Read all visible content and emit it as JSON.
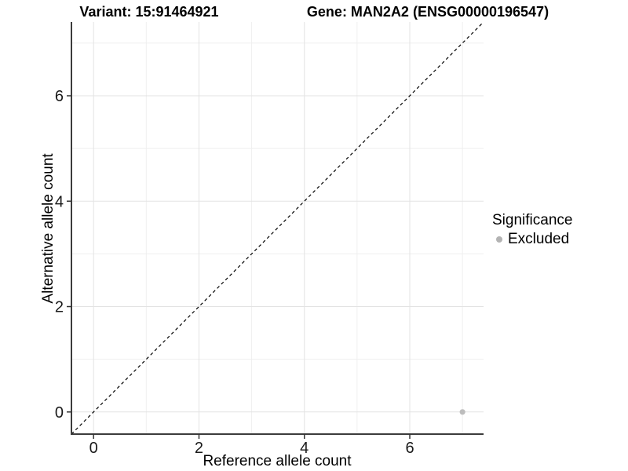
{
  "chart_data": {
    "type": "scatter",
    "title_left": "Variant: 15:91464921",
    "title_right": "Gene: MAN2A2 (ENSG00000196547)",
    "xlabel": "Reference allele count",
    "ylabel": "Alternative allele count",
    "xlim": [
      -0.42,
      7.4
    ],
    "ylim": [
      -0.42,
      7.4
    ],
    "xticks": [
      0,
      2,
      4,
      6
    ],
    "yticks": [
      0,
      2,
      4,
      6
    ],
    "x_minor_gridlines": [
      1,
      3,
      5,
      7
    ],
    "y_minor_gridlines": [
      1,
      3,
      5,
      7
    ],
    "grid": "major-and-minor",
    "legend_position": "right",
    "points": [
      {
        "x": 7,
        "y": 0,
        "significance": "Excluded"
      }
    ],
    "reference_line": {
      "kind": "identity",
      "slope": 1,
      "intercept": 0,
      "style": "dashed"
    },
    "legend": {
      "title": "Significance",
      "entries": [
        {
          "label": "Excluded",
          "color": "#b3b3b3"
        }
      ]
    }
  },
  "colors": {
    "background": "#ffffff",
    "grid_major": "#e3e3e3",
    "grid_minor": "#efefef",
    "axis_line": "#3c3c3c",
    "tick_mark": "#333333",
    "tick_text": "#1a1a1a",
    "point_fill": "#bdbdbd",
    "identity_line": "#000000"
  }
}
